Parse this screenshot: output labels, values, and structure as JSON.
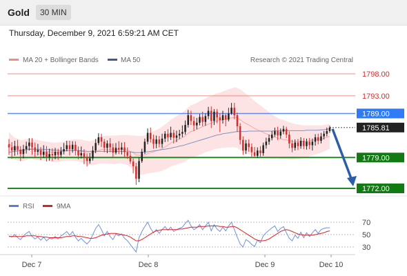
{
  "header": {
    "symbol": "Gold",
    "timeframe": "30 MIN"
  },
  "datetime": "Thursday, December 9, 2021 6:59:21 AM CET",
  "legend": {
    "ma20": {
      "label": "MA 20 + Bollinger Bands",
      "color": "#f28b82"
    },
    "ma50": {
      "label": "MA 50",
      "color": "#3c5a9a"
    }
  },
  "copyright": "Research © 2021 Trading Central",
  "chart_data": {
    "type": "candlestick",
    "price_range": [
      1771.0,
      1800.0
    ],
    "current_price": 1785.81,
    "levels": [
      {
        "label": "1798.00",
        "value": 1798.0,
        "kind": "thin-red"
      },
      {
        "label": "1793.00",
        "value": 1793.0,
        "kind": "thin-red"
      },
      {
        "label": "1789.00",
        "value": 1789.0,
        "kind": "pivot-blue"
      },
      {
        "label": "1779.00",
        "value": 1779.0,
        "kind": "support-green"
      },
      {
        "label": "1772.00",
        "value": 1772.0,
        "kind": "support-green"
      }
    ],
    "current_label": "1785.81",
    "arrow": {
      "from": 1785.81,
      "to": 1772.0,
      "direction": "down"
    },
    "x_ticks": [
      "Dec 7",
      "Dec 8",
      "Dec 9",
      "Dec 10"
    ],
    "candles": [
      [
        1782.0,
        1781.3,
        1783.2,
        1779.6
      ],
      [
        1781.3,
        1780.6,
        1782.5,
        1778.7
      ],
      [
        1780.6,
        1781.6,
        1782.8,
        1779.4
      ],
      [
        1781.6,
        1780.8,
        1783.0,
        1779.6
      ],
      [
        1780.8,
        1779.8,
        1781.6,
        1778.2
      ],
      [
        1779.8,
        1780.9,
        1781.9,
        1778.8
      ],
      [
        1780.9,
        1781.6,
        1782.6,
        1779.9
      ],
      [
        1781.6,
        1782.4,
        1783.4,
        1780.6
      ],
      [
        1782.4,
        1781.3,
        1783.4,
        1779.6
      ],
      [
        1781.3,
        1780.3,
        1782.4,
        1779.0
      ],
      [
        1780.3,
        1780.7,
        1782.1,
        1779.5
      ],
      [
        1780.7,
        1779.6,
        1781.4,
        1778.4
      ],
      [
        1779.6,
        1780.3,
        1781.8,
        1778.9
      ],
      [
        1780.3,
        1779.1,
        1781.6,
        1778.1
      ],
      [
        1779.1,
        1779.8,
        1781.0,
        1778.3
      ],
      [
        1779.8,
        1779.5,
        1781.1,
        1778.2
      ],
      [
        1779.5,
        1780.3,
        1781.2,
        1778.6
      ],
      [
        1780.3,
        1779.6,
        1781.0,
        1778.5
      ],
      [
        1779.6,
        1780.4,
        1781.4,
        1779.0
      ],
      [
        1780.4,
        1780.9,
        1782.3,
        1779.7
      ],
      [
        1780.9,
        1781.8,
        1782.8,
        1780.4
      ],
      [
        1781.8,
        1780.9,
        1782.8,
        1779.5
      ],
      [
        1780.9,
        1781.9,
        1782.7,
        1780.1
      ],
      [
        1781.9,
        1780.6,
        1782.7,
        1779.5
      ],
      [
        1780.6,
        1779.5,
        1781.5,
        1778.6
      ],
      [
        1779.5,
        1780.0,
        1781.5,
        1778.8
      ],
      [
        1780.0,
        1779.0,
        1780.9,
        1777.5
      ],
      [
        1779.0,
        1778.2,
        1779.9,
        1777.0
      ],
      [
        1778.2,
        1778.8,
        1780.0,
        1777.6
      ],
      [
        1778.8,
        1780.6,
        1781.6,
        1778.3
      ],
      [
        1780.6,
        1782.3,
        1783.2,
        1780.0
      ],
      [
        1782.3,
        1783.6,
        1784.5,
        1781.8
      ],
      [
        1783.6,
        1782.6,
        1784.4,
        1781.4
      ],
      [
        1782.6,
        1781.2,
        1783.2,
        1780.2
      ],
      [
        1781.2,
        1782.2,
        1782.9,
        1780.0
      ],
      [
        1782.2,
        1781.3,
        1783.4,
        1780.2
      ],
      [
        1781.3,
        1780.1,
        1782.2,
        1778.9
      ],
      [
        1780.1,
        1781.2,
        1782.3,
        1779.7
      ],
      [
        1781.2,
        1780.8,
        1782.7,
        1779.8
      ],
      [
        1780.8,
        1781.3,
        1782.4,
        1779.7
      ],
      [
        1781.3,
        1780.2,
        1782.5,
        1779.2
      ],
      [
        1780.2,
        1779.4,
        1781.3,
        1778.7
      ],
      [
        1779.4,
        1778.1,
        1780.3,
        1777.6
      ],
      [
        1778.1,
        1777.0,
        1778.8,
        1775.4
      ],
      [
        1777.0,
        1774.2,
        1777.8,
        1772.8
      ],
      [
        1774.2,
        1778.2,
        1779.0,
        1773.4
      ],
      [
        1778.2,
        1780.3,
        1781.0,
        1777.8
      ],
      [
        1780.3,
        1782.6,
        1783.3,
        1779.8
      ],
      [
        1782.6,
        1784.6,
        1785.6,
        1782.0
      ],
      [
        1784.6,
        1783.2,
        1785.8,
        1782.4
      ],
      [
        1783.2,
        1782.1,
        1784.2,
        1781.0
      ],
      [
        1782.1,
        1783.1,
        1784.0,
        1781.1
      ],
      [
        1783.1,
        1782.1,
        1783.9,
        1781.3
      ],
      [
        1782.1,
        1783.3,
        1784.4,
        1781.2
      ],
      [
        1783.3,
        1784.4,
        1785.0,
        1782.5
      ],
      [
        1784.4,
        1783.6,
        1785.4,
        1782.6
      ],
      [
        1783.6,
        1784.6,
        1786.0,
        1783.0
      ],
      [
        1784.6,
        1783.5,
        1785.3,
        1782.2
      ],
      [
        1783.5,
        1784.0,
        1785.1,
        1782.5
      ],
      [
        1784.0,
        1784.4,
        1785.3,
        1783.2
      ],
      [
        1784.4,
        1784.8,
        1786.3,
        1783.6
      ],
      [
        1784.8,
        1786.4,
        1787.4,
        1784.2
      ],
      [
        1786.4,
        1788.6,
        1789.8,
        1785.8
      ],
      [
        1788.6,
        1787.3,
        1789.6,
        1786.4
      ],
      [
        1787.3,
        1786.3,
        1788.3,
        1785.0
      ],
      [
        1786.3,
        1786.9,
        1788.0,
        1785.4
      ],
      [
        1786.9,
        1788.2,
        1788.9,
        1786.3
      ],
      [
        1788.2,
        1787.1,
        1789.4,
        1786.1
      ],
      [
        1787.1,
        1788.4,
        1789.0,
        1786.2
      ],
      [
        1788.4,
        1789.6,
        1790.5,
        1787.7
      ],
      [
        1789.6,
        1787.3,
        1790.6,
        1785.7
      ],
      [
        1787.3,
        1789.4,
        1790.0,
        1786.4
      ],
      [
        1789.4,
        1788.1,
        1790.0,
        1786.8
      ],
      [
        1788.1,
        1787.5,
        1789.0,
        1784.8
      ],
      [
        1787.5,
        1788.6,
        1789.6,
        1786.7
      ],
      [
        1788.6,
        1787.6,
        1789.0,
        1786.1
      ],
      [
        1787.6,
        1789.0,
        1790.3,
        1787.2
      ],
      [
        1789.0,
        1790.3,
        1791.4,
        1788.7
      ],
      [
        1790.3,
        1788.6,
        1791.4,
        1787.7
      ],
      [
        1788.6,
        1786.1,
        1789.2,
        1784.8
      ],
      [
        1786.1,
        1783.0,
        1786.8,
        1782.0
      ],
      [
        1783.0,
        1780.6,
        1783.8,
        1779.6
      ],
      [
        1780.6,
        1782.2,
        1783.0,
        1779.8
      ],
      [
        1782.2,
        1781.4,
        1783.1,
        1780.3
      ],
      [
        1781.4,
        1780.2,
        1782.2,
        1779.2
      ],
      [
        1780.2,
        1779.4,
        1781.4,
        1779.0
      ],
      [
        1779.4,
        1780.6,
        1781.3,
        1778.9
      ],
      [
        1780.6,
        1780.0,
        1781.6,
        1779.2
      ],
      [
        1780.0,
        1781.8,
        1782.4,
        1779.4
      ],
      [
        1781.8,
        1782.6,
        1783.5,
        1781.0
      ],
      [
        1782.6,
        1783.4,
        1784.2,
        1781.9
      ],
      [
        1783.4,
        1784.2,
        1785.0,
        1782.9
      ],
      [
        1784.2,
        1785.0,
        1785.8,
        1783.7
      ],
      [
        1785.0,
        1784.0,
        1786.0,
        1783.0
      ],
      [
        1784.0,
        1784.9,
        1785.6,
        1783.3
      ],
      [
        1784.9,
        1785.5,
        1786.2,
        1784.3
      ],
      [
        1785.5,
        1784.2,
        1786.0,
        1783.4
      ],
      [
        1784.2,
        1782.2,
        1784.9,
        1781.1
      ],
      [
        1782.2,
        1781.2,
        1783.0,
        1780.2
      ],
      [
        1781.2,
        1782.4,
        1783.1,
        1780.6
      ],
      [
        1782.4,
        1781.6,
        1783.2,
        1780.7
      ],
      [
        1781.6,
        1782.8,
        1783.6,
        1781.0
      ],
      [
        1782.8,
        1781.6,
        1783.4,
        1780.9
      ],
      [
        1781.6,
        1782.6,
        1783.3,
        1780.8
      ],
      [
        1782.6,
        1781.8,
        1783.4,
        1780.9
      ],
      [
        1781.8,
        1782.6,
        1783.3,
        1780.6
      ],
      [
        1782.6,
        1783.6,
        1784.3,
        1781.7
      ],
      [
        1783.6,
        1782.8,
        1784.4,
        1782.0
      ],
      [
        1782.8,
        1783.8,
        1784.6,
        1782.2
      ],
      [
        1783.8,
        1784.4,
        1785.0,
        1783.1
      ],
      [
        1784.4,
        1785.0,
        1785.8,
        1783.8
      ],
      [
        1785.0,
        1785.81,
        1786.2,
        1784.6
      ]
    ],
    "ma20": [
      1782.2,
      1781.5,
      1781.0,
      1780.8,
      1780.6,
      1780.6,
      1780.8,
      1781.0,
      1781.0,
      1780.8,
      1780.7,
      1780.6,
      1780.5,
      1780.4,
      1780.3,
      1780.2,
      1780.2,
      1780.2,
      1780.3,
      1780.4,
      1780.6,
      1780.6,
      1780.7,
      1780.7,
      1780.6,
      1780.5,
      1780.3,
      1780.1,
      1780.0,
      1780.1,
      1780.3,
      1780.6,
      1780.8,
      1780.8,
      1780.8,
      1780.8,
      1780.8,
      1780.8,
      1780.9,
      1780.9,
      1780.8,
      1780.7,
      1780.4,
      1780.1,
      1779.6,
      1779.5,
      1779.5,
      1779.6,
      1779.9,
      1780.1,
      1780.3,
      1780.5,
      1780.7,
      1781.0,
      1781.4,
      1781.8,
      1782.3,
      1782.6,
      1782.9,
      1783.2,
      1783.5,
      1783.9,
      1784.5,
      1784.9,
      1785.1,
      1785.4,
      1785.7,
      1786.0,
      1786.3,
      1786.6,
      1786.8,
      1787.1,
      1787.3,
      1787.4,
      1787.6,
      1787.7,
      1787.9,
      1788.0,
      1788.1,
      1788.0,
      1787.6,
      1787.1,
      1786.7,
      1786.4,
      1786.0,
      1785.6,
      1785.3,
      1785.0,
      1784.7,
      1784.4,
      1784.1,
      1783.8,
      1783.6,
      1783.4,
      1783.2,
      1783.1,
      1783.0,
      1782.8,
      1782.7,
      1782.6,
      1782.6,
      1782.6,
      1782.6,
      1782.7,
      1782.8,
      1782.9,
      1783.0,
      1783.1,
      1783.2,
      1783.4,
      1783.6,
      1783.8
    ],
    "ma50": [
      1780.2,
      1780.3,
      1780.4,
      1780.5,
      1780.6,
      1780.7,
      1780.8,
      1780.8,
      1780.9,
      1780.9,
      1780.9,
      1780.9,
      1780.9,
      1780.8,
      1780.8,
      1780.7,
      1780.7,
      1780.6,
      1780.6,
      1780.6,
      1780.6,
      1780.6,
      1780.6,
      1780.6,
      1780.6,
      1780.5,
      1780.5,
      1780.4,
      1780.4,
      1780.4,
      1780.4,
      1780.4,
      1780.4,
      1780.4,
      1780.4,
      1780.4,
      1780.4,
      1780.4,
      1780.4,
      1780.4,
      1780.4,
      1780.3,
      1780.3,
      1780.2,
      1780.1,
      1780.1,
      1780.2,
      1780.2,
      1780.3,
      1780.4,
      1780.5,
      1780.6,
      1780.7,
      1780.8,
      1780.9,
      1781.0,
      1781.1,
      1781.3,
      1781.4,
      1781.6,
      1781.7,
      1781.9,
      1782.1,
      1782.3,
      1782.5,
      1782.7,
      1782.9,
      1783.1,
      1783.3,
      1783.5,
      1783.7,
      1783.9,
      1784.1,
      1784.2,
      1784.4,
      1784.5,
      1784.6,
      1784.7,
      1784.8,
      1784.9,
      1784.9,
      1784.9,
      1784.9,
      1785.0,
      1785.0,
      1785.0,
      1785.0,
      1785.0,
      1785.0,
      1785.0,
      1785.0,
      1785.0,
      1785.1,
      1785.1,
      1785.1,
      1785.1,
      1785.1,
      1785.1,
      1785.1,
      1785.1,
      1785.1,
      1785.1,
      1785.1,
      1785.2,
      1785.2,
      1785.2,
      1785.2,
      1785.2,
      1785.3,
      1785.3,
      1785.4,
      1785.5
    ],
    "bb_width": [
      2.6,
      2.6,
      2.5,
      2.5,
      2.4,
      2.4,
      2.4,
      2.3,
      2.3,
      2.3,
      2.3,
      2.2,
      2.2,
      2.2,
      2.2,
      2.2,
      2.2,
      2.2,
      2.2,
      2.2,
      2.3,
      2.3,
      2.4,
      2.4,
      2.5,
      2.6,
      2.6,
      2.7,
      2.7,
      2.8,
      2.9,
      3.0,
      3.1,
      3.1,
      3.2,
      3.2,
      3.2,
      3.2,
      3.2,
      3.2,
      3.3,
      3.4,
      3.6,
      3.9,
      4.3,
      4.4,
      4.4,
      4.4,
      4.5,
      4.6,
      4.7,
      4.8,
      4.9,
      5.0,
      5.1,
      5.2,
      5.3,
      5.4,
      5.5,
      5.6,
      5.7,
      5.8,
      5.9,
      6.0,
      6.0,
      6.0,
      6.1,
      6.1,
      6.1,
      6.2,
      6.2,
      6.2,
      6.3,
      6.3,
      6.4,
      6.5,
      6.6,
      6.7,
      6.8,
      6.8,
      6.9,
      6.9,
      6.8,
      6.6,
      6.4,
      6.2,
      6.0,
      5.8,
      5.6,
      5.4,
      5.2,
      5.0,
      4.8,
      4.6,
      4.5,
      4.4,
      4.3,
      4.2,
      4.1,
      4.0,
      3.9,
      3.8,
      3.7,
      3.6,
      3.5,
      3.4,
      3.3,
      3.2,
      3.1,
      3.0,
      2.9,
      2.8
    ],
    "rsi_legend": {
      "rsi": {
        "label": "RSI",
        "color": "#5b7bd5"
      },
      "ma9": {
        "label": "9MA",
        "color": "#e02020"
      }
    },
    "rsi_levels": [
      "70",
      "50",
      "30"
    ],
    "rsi": [
      48,
      46,
      50,
      45,
      42,
      48,
      52,
      55,
      47,
      43,
      46,
      41,
      46,
      40,
      44,
      43,
      47,
      43,
      48,
      51,
      55,
      49,
      55,
      46,
      40,
      44,
      39,
      35,
      40,
      50,
      60,
      66,
      58,
      48,
      55,
      47,
      42,
      51,
      48,
      51,
      44,
      40,
      34,
      28,
      22,
      45,
      55,
      63,
      70,
      60,
      53,
      58,
      52,
      58,
      63,
      57,
      62,
      55,
      58,
      60,
      62,
      68,
      73,
      64,
      58,
      61,
      66,
      58,
      64,
      70,
      56,
      66,
      59,
      55,
      62,
      56,
      64,
      70,
      58,
      46,
      35,
      30,
      42,
      39,
      34,
      31,
      41,
      37,
      48,
      53,
      57,
      61,
      64,
      55,
      60,
      63,
      53,
      44,
      40,
      49,
      44,
      54,
      45,
      53,
      47,
      53,
      58,
      52,
      58,
      60,
      61,
      61
    ],
    "rsi_ma9": [
      47,
      47,
      47,
      47,
      47,
      47,
      48,
      48,
      48,
      48,
      47,
      47,
      46,
      46,
      45,
      45,
      45,
      45,
      45,
      46,
      47,
      47,
      48,
      48,
      47,
      47,
      46,
      45,
      44,
      44,
      45,
      47,
      49,
      50,
      51,
      52,
      52,
      52,
      51,
      50,
      49,
      48,
      46,
      43,
      40,
      40,
      42,
      45,
      48,
      51,
      54,
      56,
      57,
      58,
      58,
      58,
      58,
      58,
      58,
      59,
      59,
      60,
      61,
      62,
      62,
      62,
      63,
      63,
      63,
      64,
      64,
      64,
      64,
      63,
      63,
      62,
      62,
      63,
      63,
      61,
      58,
      55,
      52,
      49,
      46,
      43,
      41,
      40,
      40,
      41,
      43,
      46,
      49,
      52,
      55,
      57,
      58,
      57,
      55,
      53,
      51,
      50,
      49,
      49,
      49,
      49,
      50,
      51,
      52,
      53,
      55,
      56
    ]
  }
}
